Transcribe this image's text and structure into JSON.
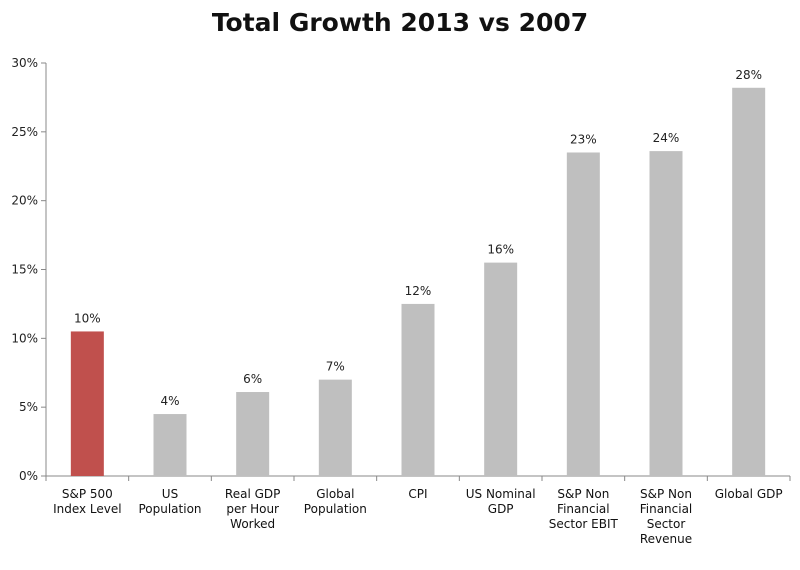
{
  "chart_data": {
    "type": "bar",
    "title": "Total Growth 2013 vs 2007",
    "xlabel": "",
    "ylabel": "",
    "ylim": [
      0,
      30
    ],
    "y_ticks": [
      "0%",
      "5%",
      "10%",
      "15%",
      "20%",
      "25%",
      "30%"
    ],
    "y_tick_values": [
      0,
      5,
      10,
      15,
      20,
      25,
      30
    ],
    "grid": false,
    "legend": "none",
    "categories": [
      [
        "S&P 500",
        "Index Level"
      ],
      [
        "US",
        "Population"
      ],
      [
        "Real GDP",
        "per Hour",
        "Worked"
      ],
      [
        "Global",
        "Population"
      ],
      [
        "CPI"
      ],
      [
        "US Nominal",
        "GDP"
      ],
      [
        "S&P Non",
        "Financial",
        "Sector EBIT"
      ],
      [
        "S&P Non",
        "Financial",
        "Sector",
        "Revenue"
      ],
      [
        "Global GDP"
      ]
    ],
    "values": [
      10.5,
      4.5,
      6.1,
      7.0,
      12.5,
      15.5,
      23.5,
      23.6,
      28.2
    ],
    "data_labels": [
      "10%",
      "4%",
      "6%",
      "7%",
      "12%",
      "16%",
      "23%",
      "24%",
      "28%"
    ],
    "colors": [
      "#c0504d",
      "#bfbfbf",
      "#bfbfbf",
      "#bfbfbf",
      "#bfbfbf",
      "#bfbfbf",
      "#bfbfbf",
      "#bfbfbf",
      "#bfbfbf"
    ]
  }
}
